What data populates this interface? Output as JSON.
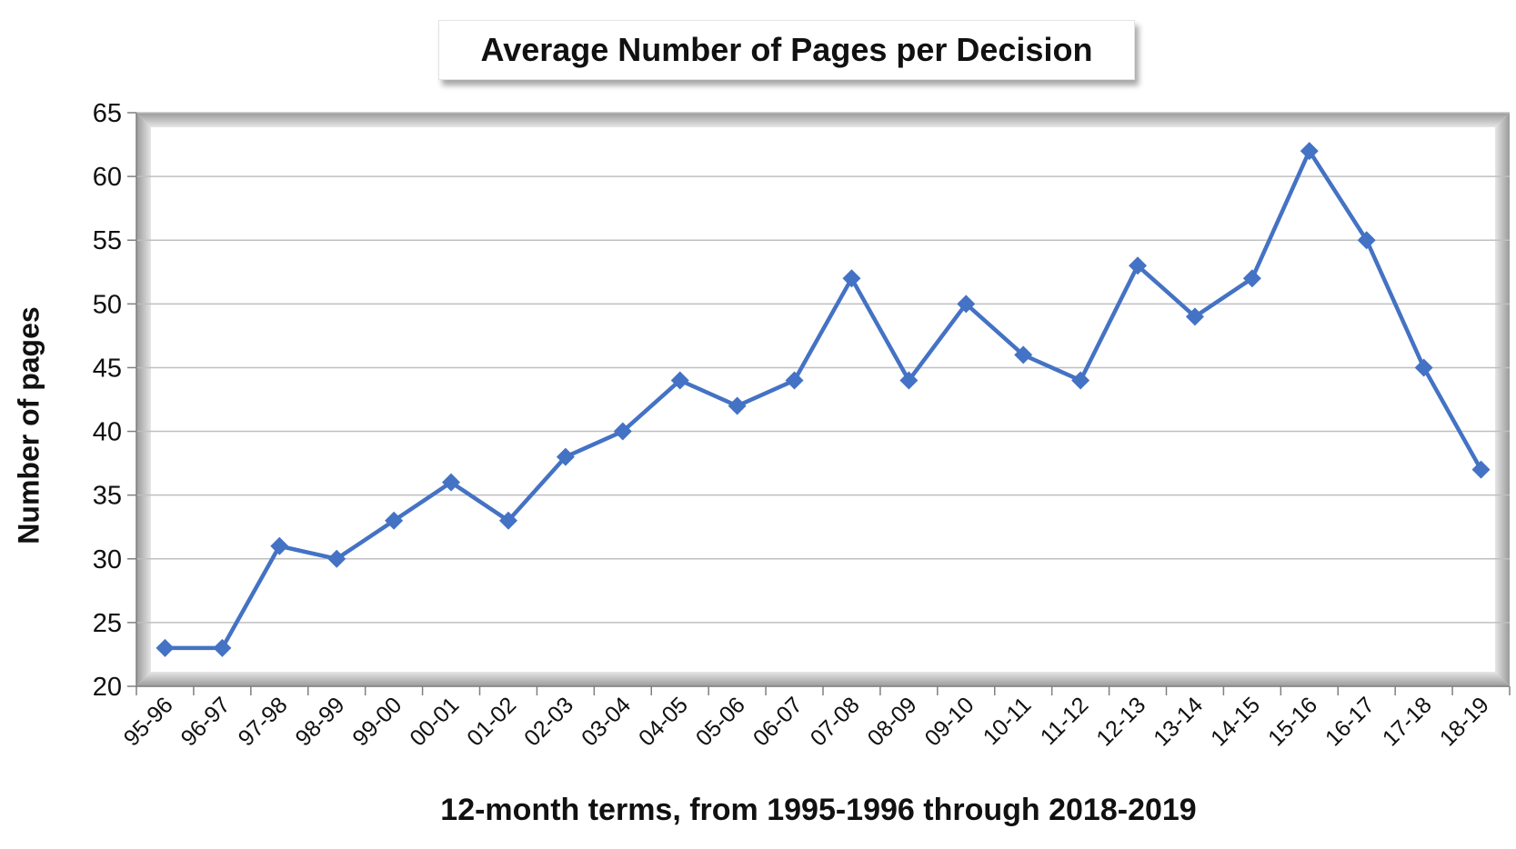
{
  "chart_data": {
    "type": "line",
    "title": "Average Number of Pages per Decision",
    "xlabel": "12-month terms, from 1995-1996 through 2018-2019",
    "ylabel": "Number of pages",
    "ylim": [
      20,
      65
    ],
    "yticks": [
      20,
      25,
      30,
      35,
      40,
      45,
      50,
      55,
      60,
      65
    ],
    "grid": true,
    "legend": "none",
    "categories": [
      "95-96",
      "96-97",
      "97-98",
      "98-99",
      "99-00",
      "00-01",
      "01-02",
      "02-03",
      "03-04",
      "04-05",
      "05-06",
      "06-07",
      "07-08",
      "08-09",
      "09-10",
      "10-11",
      "11-12",
      "12-13",
      "13-14",
      "14-15",
      "15-16",
      "16-17",
      "17-18",
      "18-19"
    ],
    "series": [
      {
        "values": [
          23,
          23,
          31,
          30,
          33,
          36,
          33,
          38,
          40,
          44,
          42,
          44,
          52,
          44,
          50,
          46,
          44,
          53,
          49,
          52,
          62,
          55,
          45,
          37
        ]
      }
    ],
    "colors": {
      "line": "#4472C4",
      "grid": "#bfbfbf",
      "axis": "#7f7f7f"
    }
  }
}
